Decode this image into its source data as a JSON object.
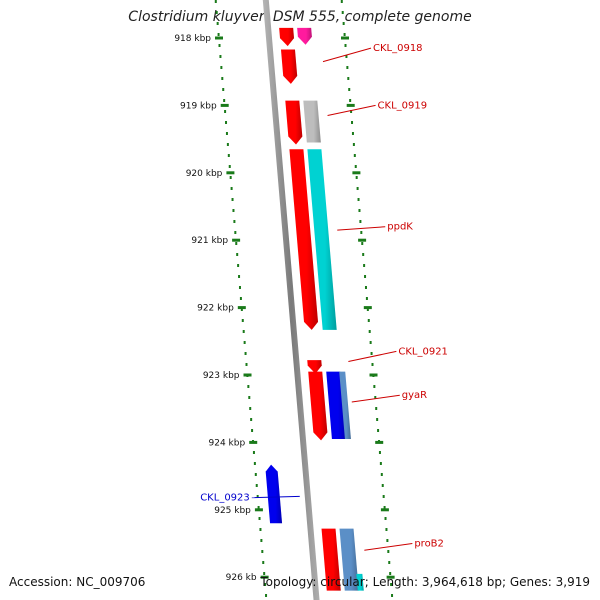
{
  "title": "Clostridium kluyveri DSM 555, complete genome",
  "footer": {
    "accession_label": "Accession:",
    "accession": "NC_009706",
    "topology_label": "Topology:",
    "topology": "circular",
    "length_label": "Length:",
    "length": "3,964,618 bp",
    "genes_label": "Genes:",
    "genes": "3,919"
  },
  "colors": {
    "forward_cds": "#ff0000",
    "forward_rna": "#ff1a9e",
    "pseudogene": "#bdbdbd",
    "feature_cyan": "#00d2d2",
    "reverse_cds": "#0000ee",
    "feature_steel": "#5b8fc7",
    "scale_ticks": "#1a7a1a",
    "label_forward": "#cc0000",
    "label_reverse": "#0000cc",
    "backbone": "#808080"
  },
  "scale": {
    "unit": "kbp",
    "ticks": [
      918,
      919,
      920,
      921,
      922,
      923,
      924,
      925,
      926
    ],
    "labels": [
      "918 kbp",
      "919 kbp",
      "920 kbp",
      "921 kbp",
      "922 kbp",
      "923 kbp",
      "924 kbp",
      "925 kbp",
      "926 kb"
    ]
  },
  "features": [
    {
      "name": "CKL_0918",
      "track": "fwd",
      "color": "forward_cds",
      "start": 917.85,
      "end": 918.12,
      "arrow": true
    },
    {
      "name": "CKL_0918",
      "track": "fwd2",
      "color": "forward_rna",
      "start": 917.85,
      "end": 918.1,
      "arrow": true
    },
    {
      "name": "CKL_0918",
      "track": "fwd",
      "color": "forward_cds",
      "start": 918.17,
      "end": 918.68,
      "arrow": true,
      "labeled": true
    },
    {
      "name": "CKL_0919",
      "track": "fwd",
      "color": "forward_cds",
      "start": 918.93,
      "end": 919.58,
      "arrow": true,
      "labeled": true
    },
    {
      "name": "CKL_0919",
      "track": "fwd2",
      "color": "pseudogene",
      "start": 918.93,
      "end": 919.55,
      "arrow": false
    },
    {
      "name": "ppdK",
      "track": "fwd",
      "color": "forward_cds",
      "start": 919.65,
      "end": 922.33,
      "arrow": true
    },
    {
      "name": "ppdK",
      "track": "fwd2",
      "color": "feature_cyan",
      "start": 919.65,
      "end": 922.33,
      "arrow": false,
      "labeled": true
    },
    {
      "name": "CKL_0921",
      "track": "fwd",
      "color": "forward_cds",
      "start": 922.78,
      "end": 922.98,
      "arrow": true,
      "labeled": true
    },
    {
      "name": "gyaR",
      "track": "fwd",
      "color": "forward_cds",
      "start": 922.95,
      "end": 923.97,
      "arrow": true,
      "labeled": true
    },
    {
      "name": "gyaR",
      "track": "fwd2",
      "color": "reverse_cds",
      "start": 922.95,
      "end": 923.95,
      "arrow": false
    },
    {
      "name": "gyaR",
      "track": "fwd3",
      "color": "feature_steel",
      "start": 922.95,
      "end": 923.95,
      "arrow": false
    },
    {
      "name": "CKL_0923",
      "track": "rev",
      "color": "reverse_cds",
      "start": 924.33,
      "end": 925.2,
      "arrow": true,
      "labeled": true
    },
    {
      "name": "proB2",
      "track": "fwd",
      "color": "forward_cds",
      "start": 925.28,
      "end": 926.2,
      "arrow": false,
      "labeled": true
    },
    {
      "name": "proB2",
      "track": "fwd2",
      "color": "feature_steel",
      "start": 925.28,
      "end": 926.2,
      "arrow": false
    },
    {
      "name": "proB2",
      "track": "fwd3",
      "color": "feature_cyan",
      "start": 925.95,
      "end": 926.2,
      "arrow": false
    }
  ],
  "labels": [
    {
      "text": "CKL_0918",
      "side": "fwd",
      "anchor": 918.35,
      "y_kb": 918.15
    },
    {
      "text": "CKL_0919",
      "side": "fwd",
      "anchor": 919.15,
      "y_kb": 919.0
    },
    {
      "text": "ppdK",
      "side": "fwd",
      "anchor": 920.85,
      "y_kb": 920.8
    },
    {
      "text": "CKL_0921",
      "side": "fwd",
      "anchor": 922.8,
      "y_kb": 922.65
    },
    {
      "text": "gyaR",
      "side": "fwd",
      "anchor": 923.4,
      "y_kb": 923.3
    },
    {
      "text": "CKL_0923",
      "side": "rev",
      "anchor": 924.8,
      "y_kb": 924.82
    },
    {
      "text": "proB2",
      "side": "fwd",
      "anchor": 925.6,
      "y_kb": 925.5
    }
  ]
}
